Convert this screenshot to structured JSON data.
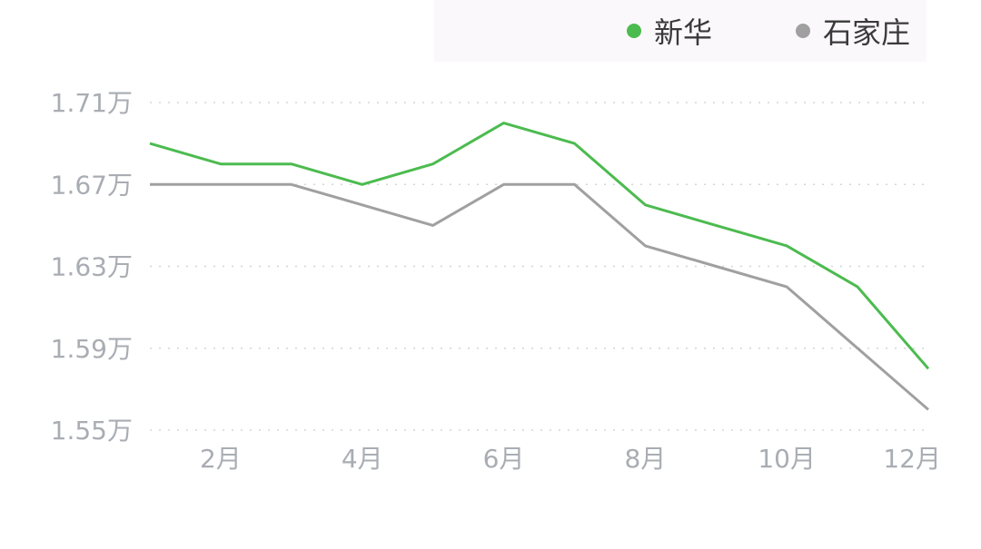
{
  "legend": [
    {
      "name": "新华",
      "color": "#4cbb4f"
    },
    {
      "name": "石家庄",
      "color": "#a0a0a0"
    }
  ],
  "chart_data": {
    "type": "line",
    "x": [
      1,
      2,
      3,
      4,
      5,
      6,
      7,
      8,
      9,
      10,
      11,
      12
    ],
    "x_tick_labels": [
      "2月",
      "4月",
      "6月",
      "8月",
      "10月",
      "12月"
    ],
    "x_tick_values": [
      2,
      4,
      6,
      8,
      10,
      12
    ],
    "y_tick_labels": [
      "1.71万",
      "1.67万",
      "1.63万",
      "1.59万",
      "1.55万"
    ],
    "y_tick_values": [
      17100,
      16700,
      16300,
      15900,
      15500
    ],
    "ylim": [
      15500,
      17100
    ],
    "grid": "horizontal dotted",
    "legend_position": "top-right",
    "series": [
      {
        "name": "新华",
        "color": "#4cbb4f",
        "values": [
          16900,
          16800,
          16800,
          16700,
          16800,
          17000,
          16900,
          16600,
          16500,
          16400,
          16200,
          15800
        ]
      },
      {
        "name": "石家庄",
        "color": "#a0a0a0",
        "values": [
          16700,
          16700,
          16700,
          16600,
          16500,
          16700,
          16700,
          16400,
          16300,
          16200,
          15900,
          15600
        ]
      }
    ]
  }
}
